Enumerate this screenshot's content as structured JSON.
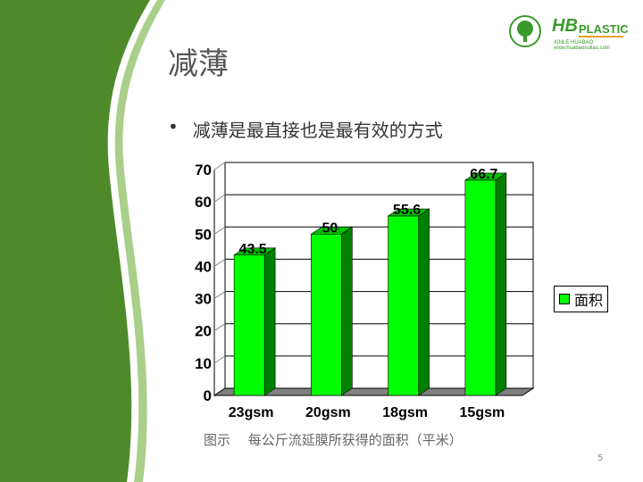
{
  "slide": {
    "title": "减薄",
    "bullet_icon": "•",
    "bullet": "减薄是最直接也是最有效的方式",
    "caption": "图示　 每公斤流延膜所获得的面积（平米）",
    "page_number": "5",
    "logo": {
      "brand": "HB",
      "suffix": "PLASTIC",
      "sub": "XINLE HUABAO www.huabaosuliao.com",
      "emblem": "GREEN TREE"
    }
  },
  "colors": {
    "bar_front": "#00ff00",
    "bar_side": "#008000",
    "floor": "#808080",
    "deco_green": "#4f8a2a"
  },
  "chart_data": {
    "type": "bar",
    "categories": [
      "23gsm",
      "20gsm",
      "18gsm",
      "15gsm"
    ],
    "series": [
      {
        "name": "面积",
        "values": [
          43.5,
          50,
          55.6,
          66.7
        ]
      }
    ],
    "data_labels": [
      "43.5",
      "50",
      "55.6",
      "66.7"
    ],
    "ylim": [
      0,
      70
    ],
    "yticks": [
      0,
      10,
      20,
      30,
      40,
      50,
      60,
      70
    ],
    "grid": true,
    "legend": "right",
    "style": "3d"
  }
}
